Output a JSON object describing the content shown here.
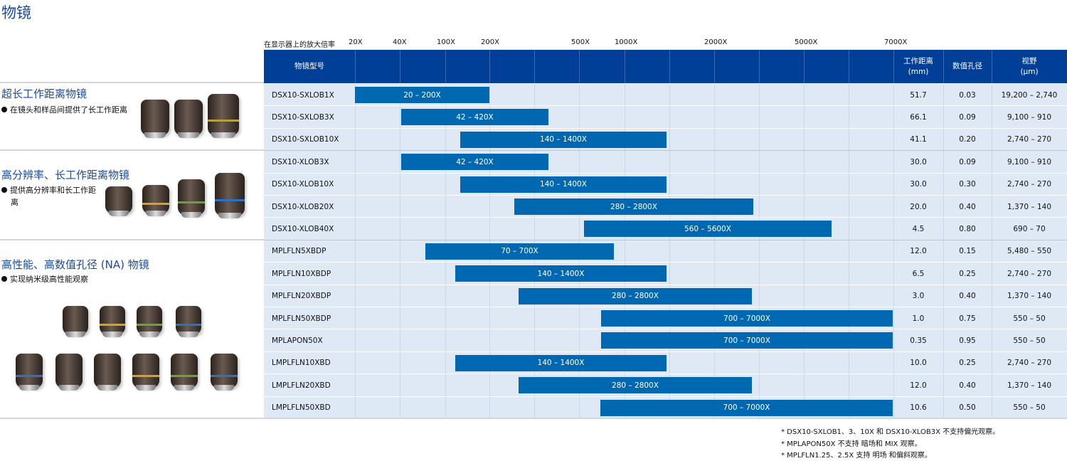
{
  "page_title": "物镜",
  "scale": {
    "label": "在显示器上的放大倍率",
    "ticks": [
      "20X",
      "40X",
      "100X",
      "200X",
      "500X",
      "1000X",
      "2000X",
      "5000X",
      "7000X"
    ]
  },
  "header": {
    "model": "物镜型号",
    "wd": "工作距离\n(mm)",
    "na": "数值孔径",
    "fov": "视野\n(μm)"
  },
  "sections": [
    {
      "title": "超长工作距离物镜",
      "bullet": "在镜头和样品间提供了长工作距离"
    },
    {
      "title": "高分辨率、长工作距离物镜",
      "bullet": "提供高分辨率和长工作距离"
    },
    {
      "title": "高性能、高数值孔径 (NA) 物镜",
      "bullet": "实现纳米级高性能观察"
    }
  ],
  "rows": [
    {
      "model": "DSX10-SXLOB1X",
      "range": "20 – 200X",
      "min": 20,
      "max": 200,
      "wd": "51.7",
      "na": "0.03",
      "fov": "19,200 – 2,740"
    },
    {
      "model": "DSX10-SXLOB3X",
      "range": "42 – 420X",
      "min": 42,
      "max": 420,
      "wd": "66.1",
      "na": "0.09",
      "fov": "9,100 – 910"
    },
    {
      "model": "DSX10-SXLOB10X",
      "range": "140 – 1400X",
      "min": 140,
      "max": 1400,
      "wd": "41.1",
      "na": "0.20",
      "fov": "2,740 – 270"
    },
    {
      "model": "DSX10-XLOB3X",
      "range": "42 – 420X",
      "min": 42,
      "max": 420,
      "wd": "30.0",
      "na": "0.09",
      "fov": "9,100 – 910"
    },
    {
      "model": "DSX10-XLOB10X",
      "range": "140 – 1400X",
      "min": 140,
      "max": 1400,
      "wd": "30.0",
      "na": "0.30",
      "fov": "2,740 – 270"
    },
    {
      "model": "DSX10-XLOB20X",
      "range": "280 – 2800X",
      "min": 280,
      "max": 2800,
      "wd": "20.0",
      "na": "0.40",
      "fov": "1,370 – 140"
    },
    {
      "model": "DSX10-XLOB40X",
      "range": "560 – 5600X",
      "min": 560,
      "max": 5600,
      "wd": "4.5",
      "na": "0.80",
      "fov": "690 – 70"
    },
    {
      "model": "MPLFLN5XBDP",
      "range": "70 – 700X",
      "min": 70,
      "max": 700,
      "wd": "12.0",
      "na": "0.15",
      "fov": "5,480 – 550"
    },
    {
      "model": "MPLFLN10XBDP",
      "range": "140 – 1400X",
      "min": 140,
      "max": 1400,
      "wd": "6.5",
      "na": "0.25",
      "fov": "2,740 – 270"
    },
    {
      "model": "MPLFLN20XBDP",
      "range": "280 – 2800X",
      "min": 280,
      "max": 2800,
      "wd": "3.0",
      "na": "0.40",
      "fov": "1,370 – 140"
    },
    {
      "model": "MPLFLN50XBDP",
      "range": "700 – 7000X",
      "min": 700,
      "max": 7000,
      "wd": "1.0",
      "na": "0.75",
      "fov": "550 – 50"
    },
    {
      "model": "MPLAPON50X",
      "range": "700 – 7000X",
      "min": 700,
      "max": 7000,
      "wd": "0.35",
      "na": "0.95",
      "fov": "550 – 50"
    },
    {
      "model": "LMPLFLN10XBD",
      "range": "140 – 1400X",
      "min": 140,
      "max": 1400,
      "wd": "10.0",
      "na": "0.25",
      "fov": "2,740 – 270"
    },
    {
      "model": "LMPLFLN20XBD",
      "range": "280 – 2800X",
      "min": 280,
      "max": 2800,
      "wd": "12.0",
      "na": "0.40",
      "fov": "1,370 – 140"
    },
    {
      "model": "LMPLFLN50XBD",
      "range": "700 – 7000X",
      "min": 700,
      "max": 7000,
      "wd": "10.6",
      "na": "0.50",
      "fov": "550 – 50"
    }
  ],
  "footnotes": [
    "* DSX10-SXLOB1、3、10X 和 DSX10-XLOB3X 不支持偏光观察。",
    "* MPLAPON50X 不支持 暗场和 MIX 观察。",
    "* MPLFLN1.25、2.5X 支持 明场 和偏斜观察。"
  ],
  "colors": {
    "header": "#003f98",
    "bar": "#0068b0",
    "table_bg": "#dfe9f6",
    "title": "#1a4a9a"
  }
}
